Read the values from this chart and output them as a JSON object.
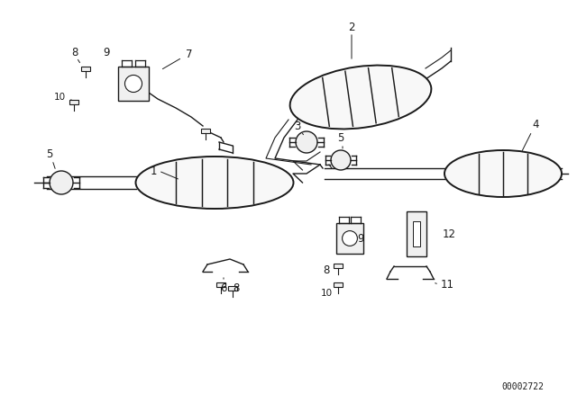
{
  "bg_color": "#ffffff",
  "line_color": "#1a1a1a",
  "diagram_id": "00002722",
  "fig_w": 6.4,
  "fig_h": 4.48,
  "dpi": 100
}
